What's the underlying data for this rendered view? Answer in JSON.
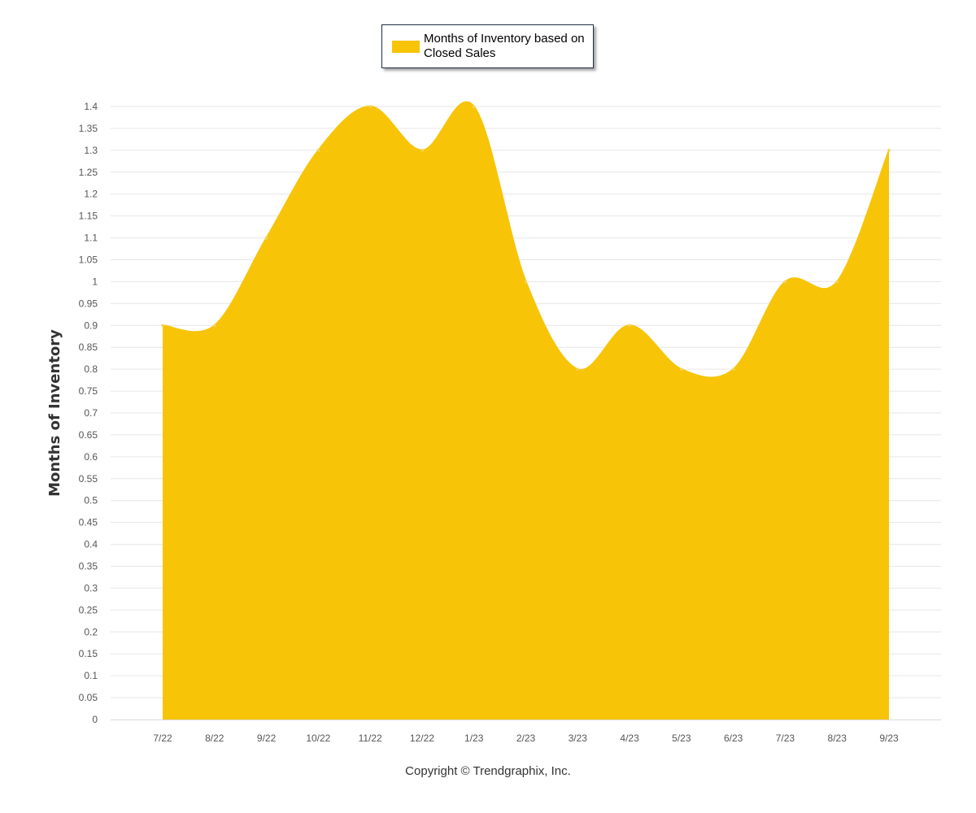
{
  "chart_data": {
    "type": "area",
    "categories": [
      "7/22",
      "8/22",
      "9/22",
      "10/22",
      "11/22",
      "12/22",
      "1/23",
      "2/23",
      "3/23",
      "4/23",
      "5/23",
      "6/23",
      "7/23",
      "8/23",
      "9/23"
    ],
    "series": [
      {
        "name": "Months of Inventory based on Closed Sales",
        "values": [
          0.9,
          0.9,
          1.1,
          1.3,
          1.4,
          1.3,
          1.4,
          1.0,
          0.8,
          0.9,
          0.8,
          0.8,
          1.0,
          1.0,
          1.3
        ]
      }
    ],
    "ylabel": "Months of Inventory",
    "xlabel": "",
    "ylim": [
      0,
      1.4
    ],
    "ytick_step": 0.05,
    "grid": true,
    "legend_placement": "top-center",
    "fill_color": "#f7c408"
  },
  "legend": {
    "label": "Months of Inventory based on Closed Sales",
    "color": "#f7c408"
  },
  "footer": {
    "copyright": "Copyright © Trendgraphix, Inc."
  }
}
